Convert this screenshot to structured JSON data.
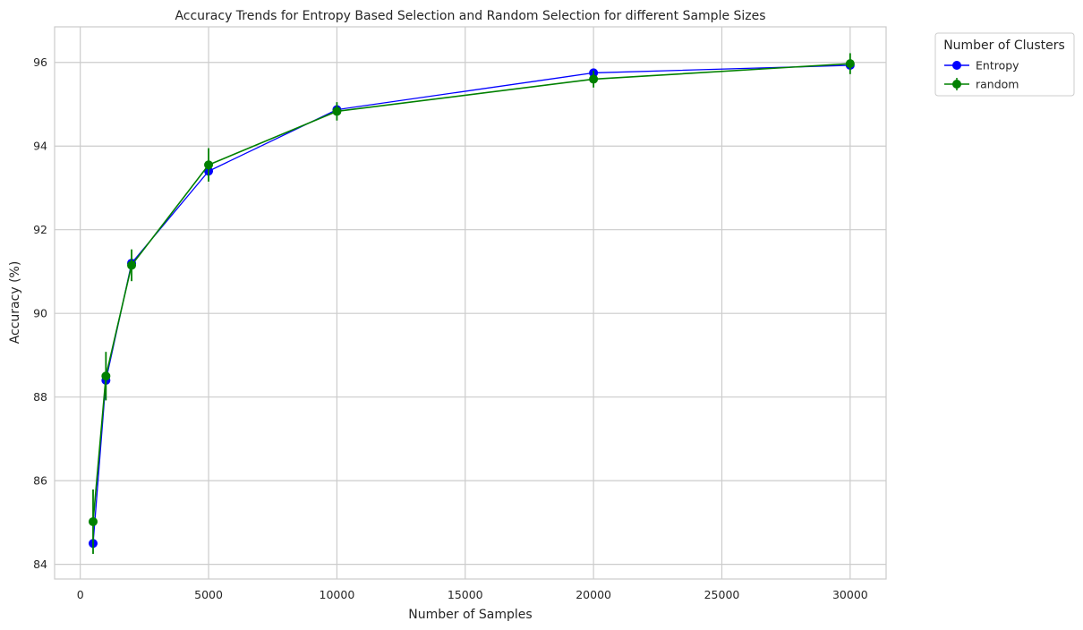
{
  "chart_data": {
    "type": "line",
    "title": "Accuracy Trends for Entropy Based Selection and Random Selection for different Sample Sizes",
    "xlabel": "Number of Samples",
    "ylabel": "Accuracy (%)",
    "xlim": [
      -1000,
      31400
    ],
    "ylim": [
      83.65,
      96.85
    ],
    "xticks": [
      0,
      5000,
      10000,
      15000,
      20000,
      25000,
      30000
    ],
    "yticks": [
      84,
      86,
      88,
      90,
      92,
      94,
      96
    ],
    "grid": true,
    "legend": {
      "title": "Number of Clusters",
      "placement": "outside-top-right"
    },
    "series": [
      {
        "name": "Entropy",
        "color": "#0000ff",
        "x": [
          500,
          1000,
          2000,
          5000,
          10000,
          20000,
          30000
        ],
        "y": [
          84.5,
          88.4,
          91.2,
          93.4,
          94.87,
          95.75,
          95.93
        ]
      },
      {
        "name": "random",
        "color": "#008000",
        "x": [
          500,
          1000,
          2000,
          5000,
          10000,
          20000,
          30000
        ],
        "y": [
          85.02,
          88.5,
          91.15,
          93.55,
          94.83,
          95.6,
          95.97
        ],
        "yerr": [
          0.77,
          0.58,
          0.38,
          0.4,
          0.22,
          0.2,
          0.25
        ]
      }
    ]
  }
}
